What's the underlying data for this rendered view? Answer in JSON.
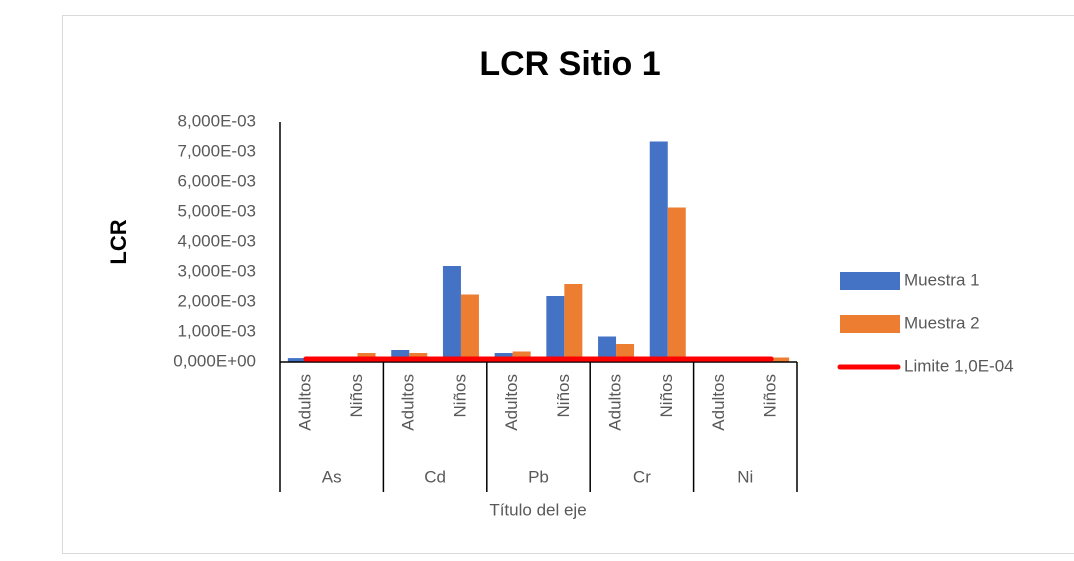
{
  "chart_data": {
    "type": "bar",
    "title": "LCR Sitio 1",
    "x_label": "Título del eje",
    "y_label": "LCR",
    "categories": [
      "Adultos",
      "Niños",
      "Adultos",
      "Niños",
      "Adultos",
      "Niños",
      "Adultos",
      "Niños",
      "Adultos",
      "Niños"
    ],
    "category_groups": [
      "As",
      "Cd",
      "Pb",
      "Cr",
      "Ni"
    ],
    "series": [
      {
        "name": "Muestra 1",
        "color": "#4472c4",
        "values": [
          0.00013,
          2e-05,
          0.0004,
          0.0032,
          0.0003,
          0.0022,
          0.00085,
          0.00735,
          2e-05,
          5e-05
        ]
      },
      {
        "name": "Muestra 2",
        "color": "#ed7d31",
        "values": [
          2e-05,
          0.0003,
          0.0003,
          0.00225,
          0.00035,
          0.0026,
          0.0006,
          0.00515,
          2e-05,
          0.00015
        ]
      },
      {
        "name": "Limite 1,0E-04",
        "color": "#ff0000",
        "type": "line",
        "values": [
          0.0001,
          0.0001,
          0.0001,
          0.0001,
          0.0001,
          0.0001,
          0.0001,
          0.0001,
          0.0001,
          0.0001
        ]
      }
    ],
    "ylim": [
      0,
      0.008
    ],
    "yticks": [
      {
        "value": 0,
        "label": "0,000E+00"
      },
      {
        "value": 0.001,
        "label": "1,000E-03"
      },
      {
        "value": 0.002,
        "label": "2,000E-03"
      },
      {
        "value": 0.003,
        "label": "3,000E-03"
      },
      {
        "value": 0.004,
        "label": "4,000E-03"
      },
      {
        "value": 0.005,
        "label": "5,000E-03"
      },
      {
        "value": 0.006,
        "label": "6,000E-03"
      },
      {
        "value": 0.007,
        "label": "7,000E-03"
      },
      {
        "value": 0.008,
        "label": "8,000E-03"
      }
    ],
    "legend": "right",
    "grid": false
  }
}
